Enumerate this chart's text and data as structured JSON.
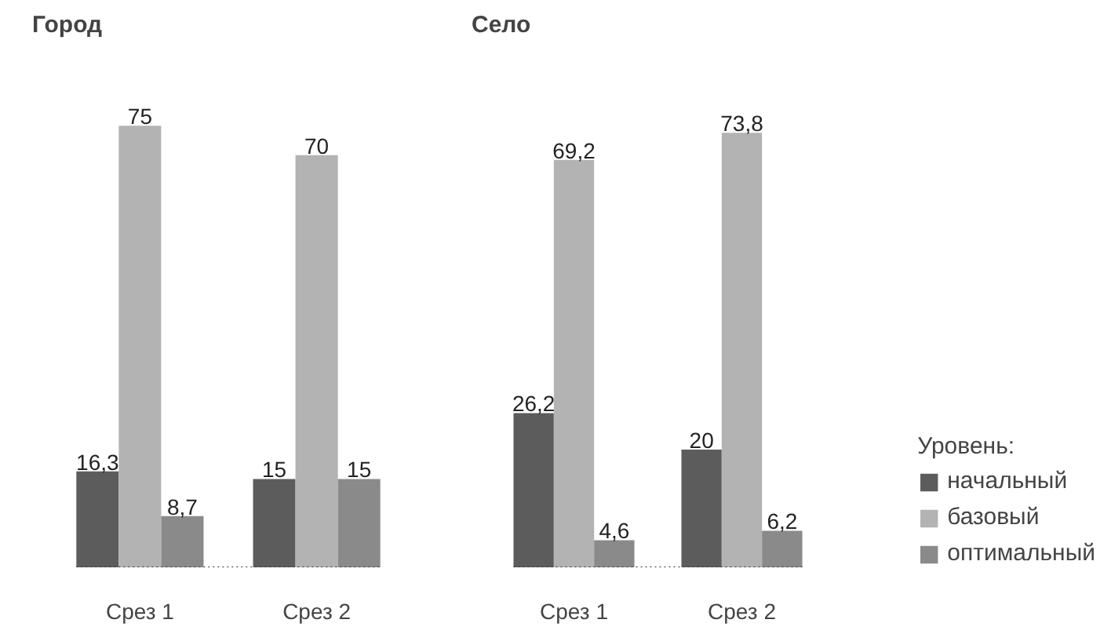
{
  "chart_data": [
    {
      "type": "bar",
      "title": "Город",
      "categories": [
        "Срез 1",
        "Срез 2"
      ],
      "legend": false,
      "series": [
        {
          "color": "#5c5c5c",
          "values": [
            16.3,
            15
          ],
          "value_labels": [
            "16,3",
            "15"
          ]
        },
        {
          "color": "#b3b3b3",
          "values": [
            75,
            70
          ],
          "value_labels": [
            "75",
            "70"
          ]
        },
        {
          "color": "#8a8a8a",
          "values": [
            8.7,
            15
          ],
          "value_labels": [
            "8,7",
            "15"
          ]
        }
      ]
    },
    {
      "type": "bar",
      "title": "Село",
      "categories": [
        "Срез 1",
        "Срез 2"
      ],
      "legend": "right",
      "legend_title": "Уровень:",
      "series": [
        {
          "name": "начальный",
          "color": "#5c5c5c",
          "values": [
            26.2,
            20
          ],
          "value_labels": [
            "26,2",
            "20"
          ]
        },
        {
          "name": "базовый",
          "color": "#b3b3b3",
          "values": [
            69.2,
            73.8
          ],
          "value_labels": [
            "69,2",
            "73,8"
          ]
        },
        {
          "name": "оптимальный",
          "color": "#8a8a8a",
          "values": [
            4.6,
            6.2
          ],
          "value_labels": [
            "4,6",
            "6,2"
          ]
        }
      ]
    }
  ]
}
